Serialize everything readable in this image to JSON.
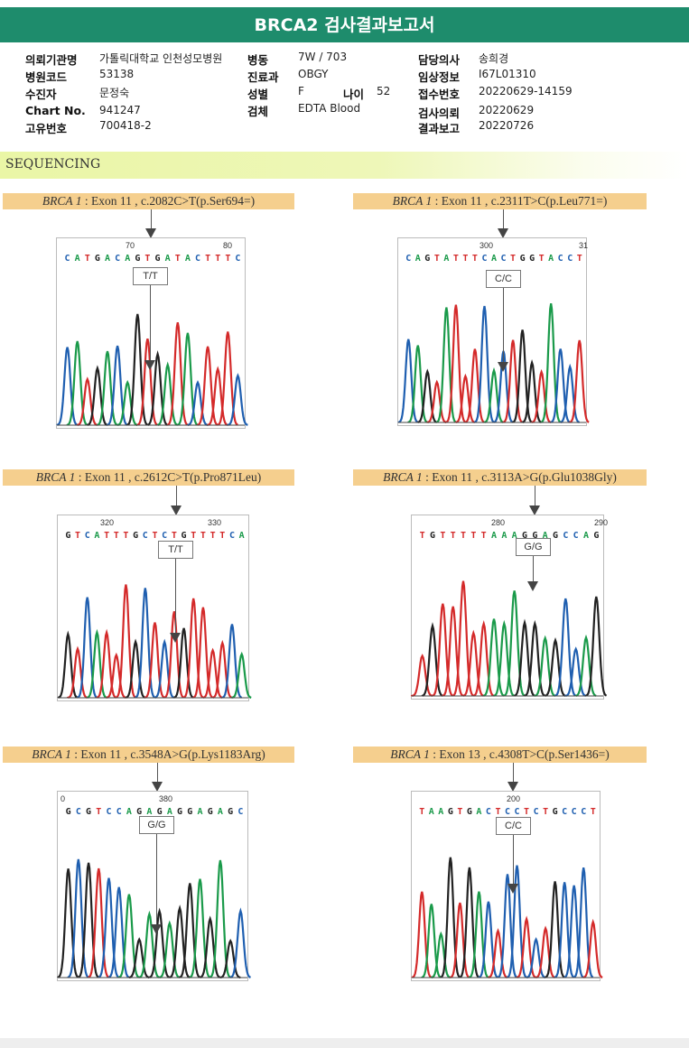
{
  "header": {
    "title": "BRCA2 검사결과보고서"
  },
  "info": {
    "institution_label": "의뢰기관명",
    "institution": "가톨릭대학교 인천성모병원",
    "code_label": "병원코드",
    "code": "53138",
    "patient_label": "수진자",
    "patient": "문정숙",
    "chart_label": "Chart No.",
    "chart": "941247",
    "id_label": "고유번호",
    "id": "700418-2",
    "ward_label": "병동",
    "ward": "7W / 703",
    "dept_label": "진료과",
    "dept": "OBGY",
    "sex_label": "성별",
    "sex": "F",
    "age_label": "나이",
    "age": "52",
    "specimen_label": "검체",
    "specimen": "EDTA Blood",
    "doctor_label": "담당의사",
    "doctor": "송희경",
    "clinical_label": "임상정보",
    "clinical": "I67L01310",
    "receipt_label": "접수번호",
    "receipt": "20220629-14159",
    "request_label": "검사의뢰",
    "request": "20220629",
    "report_label": "결과보고",
    "report": "20220726"
  },
  "section_title": "SEQUENCING",
  "colors": {
    "A": "#1a9a4a",
    "C": "#1f5fb0",
    "G": "#222222",
    "T": "#d42a2a",
    "title_bar": "#1e8c6c",
    "label_bg": "#f5cf8e"
  },
  "panels": [
    {
      "gene": "BRCA 1",
      "detail": " : Exon 11 , c.2082C>T(p.Ser694=)",
      "ticks": [
        "70",
        "80"
      ],
      "sequence": "CATGACAGTGATACTTTC",
      "genotype": "T/T"
    },
    {
      "gene": "BRCA 1",
      "detail": " : Exon 11 , c.2311T>C(p.Leu771=)",
      "ticks": [
        "300",
        "31"
      ],
      "sequence": "CAGTATTTCACTGGTACCT",
      "genotype": "C/C"
    },
    {
      "gene": "BRCA 1",
      "detail": " : Exon 11 , c.2612C>T(p.Pro871Leu)",
      "ticks": [
        "320",
        "330"
      ],
      "sequence": "GTCATTTGCTCTGTTTTCA",
      "genotype": "T/T"
    },
    {
      "gene": "BRCA 1",
      "detail": " : Exon 11 , c.3113A>G(p.Glu1038Gly)",
      "ticks": [
        "280",
        "290"
      ],
      "sequence": "TGTTTTTAAAGGAGCCAG",
      "genotype": "G/G"
    },
    {
      "gene": "BRCA 1",
      "detail": " : Exon 11 , c.3548A>G(p.Lys1183Arg)",
      "ticks": [
        "0",
        "380"
      ],
      "sequence": "GCGTCCAGAGAGGAGAGC",
      "genotype": "G/G"
    },
    {
      "gene": "BRCA 1",
      "detail": " : Exon 13 , c.4308T>C(p.Ser1436=)",
      "ticks": [
        "200"
      ],
      "sequence": "TAAGTGACTCCTCTGCCCT",
      "genotype": "C/C"
    }
  ]
}
